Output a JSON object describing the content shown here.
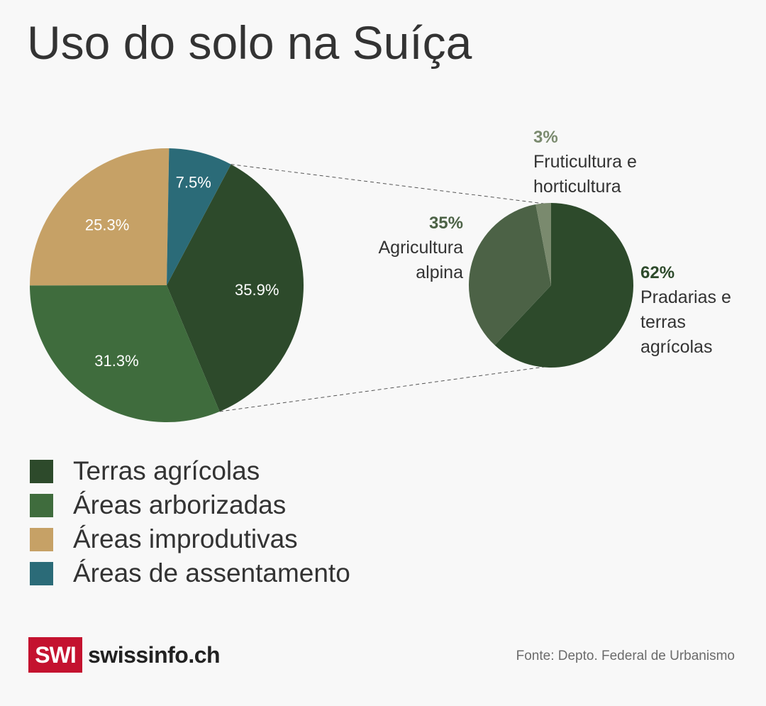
{
  "chart_data": [
    {
      "type": "pie",
      "title": "Uso do solo na Suíça",
      "slices": [
        {
          "name": "Terras agrícolas",
          "value": 35.9,
          "label": "35.9%",
          "color": "#2d4a2b"
        },
        {
          "name": "Áreas arborizadas",
          "value": 31.3,
          "label": "31.3%",
          "color": "#3f6c3d"
        },
        {
          "name": "Áreas improdutivas",
          "value": 25.3,
          "label": "25.3%",
          "color": "#c6a166"
        },
        {
          "name": "Áreas de assentamento",
          "value": 7.5,
          "label": "7.5%",
          "color": "#2b6b78"
        }
      ],
      "legend": "bottom-left"
    },
    {
      "type": "pie",
      "slices": [
        {
          "name": "Pradarias e terras agrícolas",
          "name_lines": [
            "Pradarias e",
            "terras",
            "agrícolas"
          ],
          "value": 62,
          "label": "62%",
          "color": "#2d4a2b"
        },
        {
          "name": "Agricultura alpina",
          "name_lines": [
            "Agricultura",
            "alpina"
          ],
          "value": 35,
          "label": "35%",
          "color": "#4c6246"
        },
        {
          "name": "Fruticultura e horticultura",
          "name_lines": [
            "Fruticultura e",
            "horticultura"
          ],
          "value": 3,
          "label": "3%",
          "color": "#7a8a6e"
        }
      ]
    }
  ],
  "branding": {
    "logo_mark": "SWI",
    "logo_text": "swissinfo.ch",
    "logo_color": "#c4122f"
  },
  "source": "Fonte: Depto. Federal de Urbanismo"
}
